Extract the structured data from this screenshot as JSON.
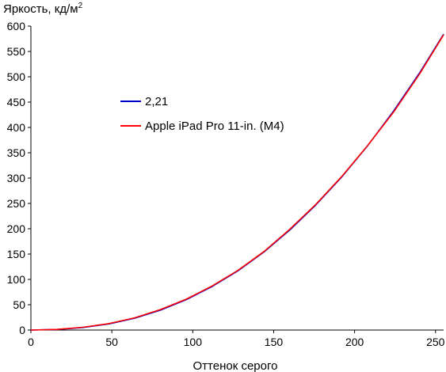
{
  "chart_data": {
    "type": "line",
    "title": "",
    "ylabel": "Яркость, кд/м",
    "ylabel_sup": "2",
    "xlabel": "Оттенок серого",
    "xlim": [
      0,
      255
    ],
    "ylim": [
      0,
      600
    ],
    "x_ticks": [
      0,
      50,
      100,
      150,
      200,
      250
    ],
    "y_ticks": [
      0,
      50,
      100,
      150,
      200,
      250,
      300,
      350,
      400,
      450,
      500,
      550,
      600
    ],
    "grid": false,
    "legend_position": "upper-left-inside",
    "series": [
      {
        "name": "2,21",
        "color": "#0000cc",
        "x": [
          0,
          16,
          32,
          48,
          64,
          80,
          96,
          112,
          128,
          144,
          160,
          176,
          192,
          208,
          224,
          240,
          255
        ],
        "y": [
          0,
          1.1,
          5,
          12,
          23.3,
          39.2,
          60,
          86,
          117,
          154,
          197.7,
          246.8,
          302.1,
          363.8,
          432.1,
          507.1,
          584
        ]
      },
      {
        "name": "Apple iPad Pro 11-in. (M4)",
        "color": "#ff0000",
        "x": [
          0,
          16,
          32,
          48,
          64,
          80,
          96,
          112,
          128,
          144,
          160,
          176,
          192,
          208,
          224,
          240,
          255
        ],
        "y": [
          0,
          1.2,
          5.4,
          12.6,
          24,
          40.5,
          61,
          87,
          118,
          155,
          199,
          248,
          303,
          364,
          430,
          505,
          583
        ]
      }
    ]
  }
}
